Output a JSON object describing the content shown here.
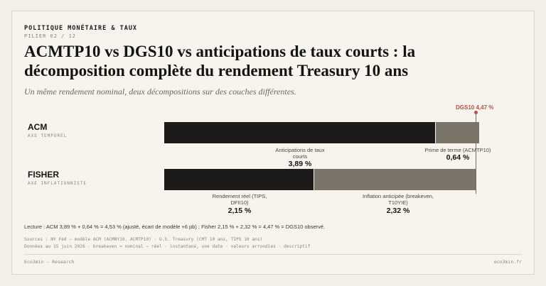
{
  "header": {
    "kicker": "POLITIQUE MONÉTAIRE & TAUX",
    "pillar": "PILIER 02 / 12",
    "title": "ACMTP10 vs DGS10 vs anticipations de taux courts : la décomposition complète du rendement Treasury 10 ans",
    "subtitle": "Un même rendement nominal, deux décompositions sur des couches différentes."
  },
  "rows": [
    {
      "label": "ACM",
      "sublabel": "AXE TEMPOREL"
    },
    {
      "label": "FISHER",
      "sublabel": "AXE INFLATIONNISTE"
    }
  ],
  "reference": {
    "label": "DGS10 4,47 %",
    "color": "#b5533c"
  },
  "segments": {
    "acm_short": {
      "label": "Anticipations de taux courts",
      "value_text": "3,89 %"
    },
    "acm_term": {
      "label": "Prime de terme (ACMTP10)",
      "value_text": "0,64 %"
    },
    "fisher_real": {
      "label": "Rendement réel (TIPS, DFII10)",
      "value_text": "2,15 %"
    },
    "fisher_infl": {
      "label": "Inflation anticipée (breakeven, T10YIE)",
      "value_text": "2,32 %"
    }
  },
  "chart_data": {
    "type": "bar",
    "orientation": "horizontal",
    "stacked": true,
    "categories": [
      "ACM",
      "FISHER"
    ],
    "series": [
      {
        "name": "Anticipations de taux courts",
        "category": "ACM",
        "value": 3.89
      },
      {
        "name": "Prime de terme (ACMTP10)",
        "category": "ACM",
        "value": 0.64
      },
      {
        "name": "Rendement réel (TIPS, DFII10)",
        "category": "FISHER",
        "value": 2.15
      },
      {
        "name": "Inflation anticipée (breakeven, T10YIE)",
        "category": "FISHER",
        "value": 2.32
      }
    ],
    "reference_line": {
      "label": "DGS10 4,47 %",
      "value": 4.47
    },
    "colors": {
      "dark": "#1c1b1a",
      "grey": "#7b7468"
    }
  },
  "notes": {
    "lecture": "Lecture : ACM 3,89 % + 0,64 % = 4,53 % (ajusté, écart de modèle +6 pb) ; Fisher 2,15 % + 2,32 % = 4,47 % = DGS10 observé.",
    "sources_1": "Sources : NY Fed — modèle ACM (ACMNY10, ACMTP10) · U.S. Treasury (CMT 10 ans, TIPS 10 ans)",
    "sources_2": "Données au 15 juin 2026 · breakeven = nominal − réel · instantané, une date · valeurs arrondies · descriptif"
  },
  "footer": {
    "left": "Eco3min — Research",
    "right": "eco3min.fr"
  }
}
